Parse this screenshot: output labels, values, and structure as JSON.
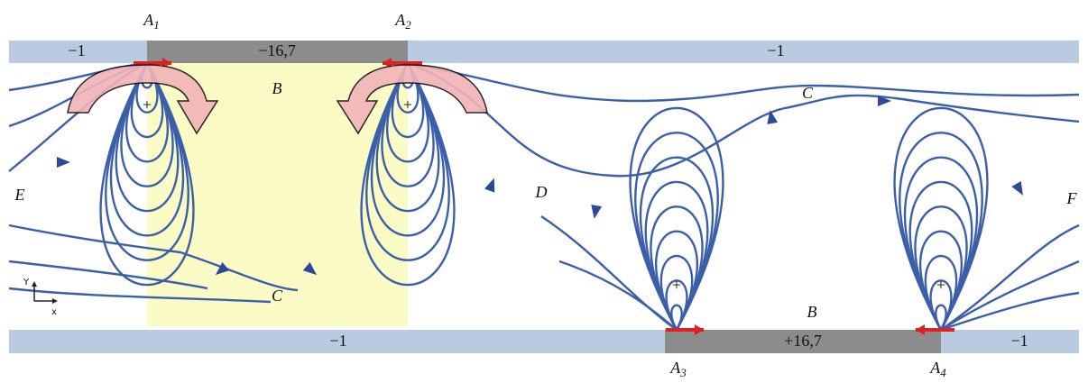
{
  "electrodes": [
    {
      "letter": "A",
      "index": "1"
    },
    {
      "letter": "A",
      "index": "2"
    },
    {
      "letter": "A",
      "index": "3"
    },
    {
      "letter": "A",
      "index": "4"
    }
  ],
  "top_wall": {
    "left": "−1",
    "electrode": "−16,7",
    "right": "−1"
  },
  "bottom_wall": {
    "left": "−1",
    "electrode": "+16,7",
    "right": "−1"
  },
  "region_labels": {
    "top_b": "B",
    "top_c": "C",
    "bottom_c": "C",
    "bottom_b": "B",
    "e": "E",
    "d": "D",
    "f": "F"
  },
  "source_sign": "+",
  "axes": {
    "y": "Y",
    "x": "x"
  }
}
